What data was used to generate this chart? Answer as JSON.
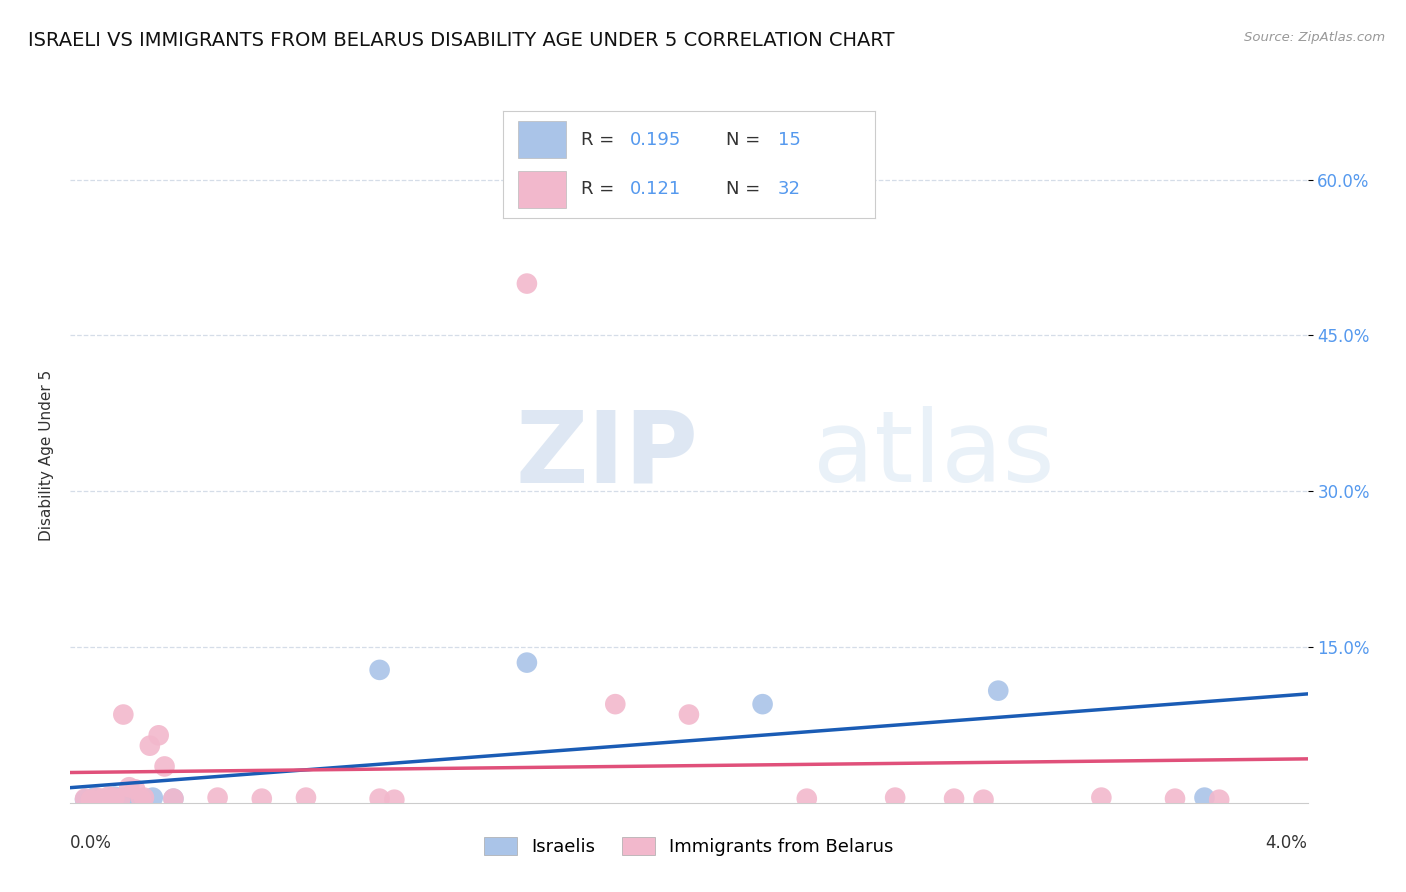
{
  "title": "ISRAELI VS IMMIGRANTS FROM BELARUS DISABILITY AGE UNDER 5 CORRELATION CHART",
  "source": "Source: ZipAtlas.com",
  "ylabel": "Disability Age Under 5",
  "xlim": [
    0.0,
    4.2
  ],
  "ylim": [
    0.0,
    67.0
  ],
  "yticks": [
    15.0,
    30.0,
    45.0,
    60.0
  ],
  "ytick_labels": [
    "15.0%",
    "30.0%",
    "45.0%",
    "60.0%"
  ],
  "background_color": "#ffffff",
  "watermark_zip": "ZIP",
  "watermark_atlas": "atlas",
  "israelis": {
    "color": "#aac4e8",
    "line_color": "#1a5cb5",
    "R": 0.195,
    "N": 15,
    "x": [
      0.05,
      0.08,
      0.1,
      0.13,
      0.15,
      0.18,
      0.2,
      0.22,
      0.28,
      0.35,
      1.05,
      1.55,
      2.35,
      3.15,
      3.85
    ],
    "y": [
      0.3,
      0.5,
      0.3,
      0.4,
      0.6,
      0.5,
      0.3,
      0.4,
      0.5,
      0.4,
      12.8,
      13.5,
      9.5,
      10.8,
      0.5
    ]
  },
  "belarus": {
    "color": "#f2b8cc",
    "line_color": "#e0507a",
    "R": 0.121,
    "N": 32,
    "x": [
      0.05,
      0.07,
      0.09,
      0.11,
      0.12,
      0.13,
      0.15,
      0.17,
      0.18,
      0.2,
      0.22,
      0.24,
      0.25,
      0.27,
      0.3,
      0.32,
      0.35,
      0.5,
      0.65,
      0.8,
      1.05,
      1.1,
      1.55,
      1.85,
      2.1,
      2.5,
      2.8,
      3.0,
      3.1,
      3.5,
      3.75,
      3.9
    ],
    "y": [
      0.4,
      0.3,
      0.5,
      0.4,
      0.3,
      0.6,
      0.5,
      0.4,
      8.5,
      1.5,
      1.3,
      0.4,
      0.5,
      5.5,
      6.5,
      3.5,
      0.4,
      0.5,
      0.4,
      0.5,
      0.4,
      0.3,
      50.0,
      9.5,
      8.5,
      0.4,
      0.5,
      0.4,
      0.3,
      0.5,
      0.4,
      0.3
    ]
  },
  "grid_color": "#d5dde8",
  "title_fontsize": 14,
  "axis_label_fontsize": 11,
  "tick_fontsize": 12,
  "legend_fontsize": 13,
  "blue_text_color": "#5599ee",
  "dark_text_color": "#333333",
  "source_color": "#999999"
}
